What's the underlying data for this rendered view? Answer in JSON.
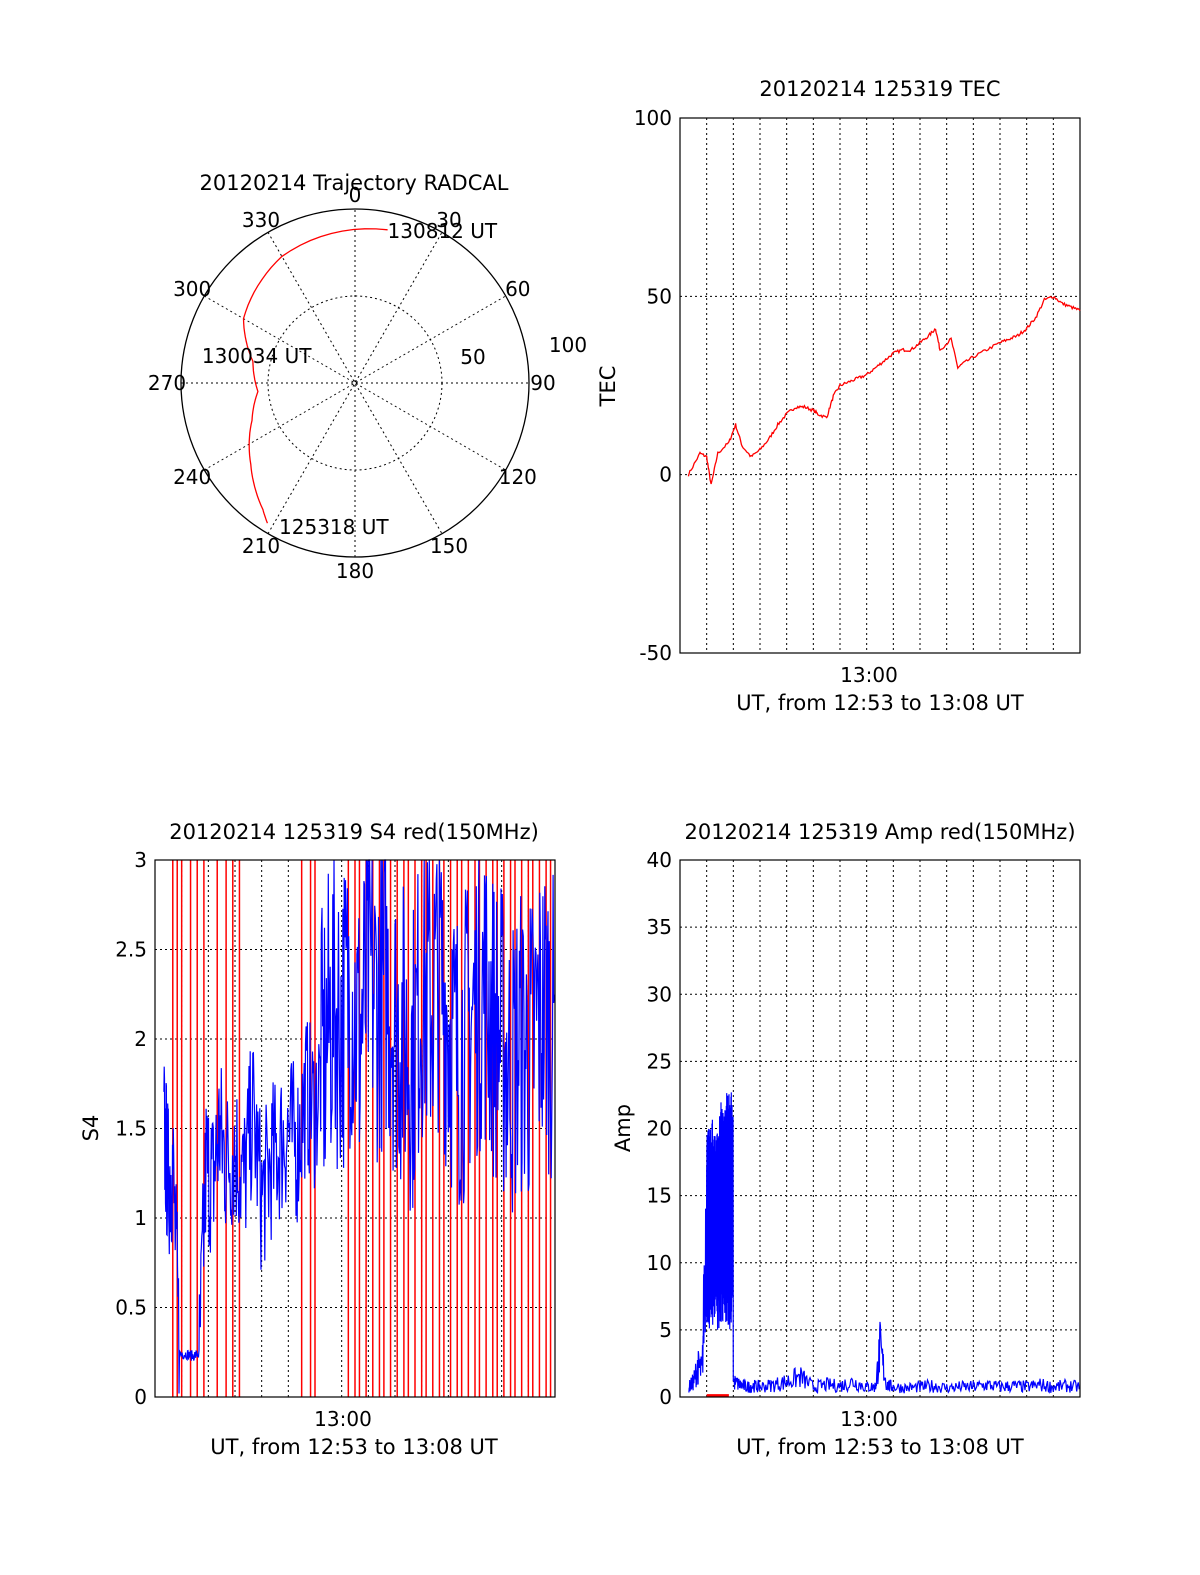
{
  "chart_data": [
    {
      "type": "polar",
      "title": "20120214 Trajectory RADCAL",
      "angle_labels": [
        "0",
        "30",
        "60",
        "90",
        "120",
        "150",
        "180",
        "210",
        "240",
        "270",
        "300",
        "330"
      ],
      "radius_labels": [
        "50",
        "100"
      ],
      "rlim": [
        0,
        100
      ],
      "grid": true,
      "colors": {
        "trajectory": "#ff0000"
      },
      "annotations": [
        {
          "text": "130812 UT",
          "azimuth": 12,
          "r": 90
        },
        {
          "text": "130034 UT",
          "azimuth": 270,
          "r": 42
        },
        {
          "text": "125318 UT",
          "azimuth": 208,
          "r": 93
        }
      ],
      "series": [
        {
          "points": [
            {
              "azimuth": 12,
              "r": 90
            },
            {
              "azimuth": 330,
              "r": 84
            },
            {
              "azimuth": 300,
              "r": 74
            },
            {
              "azimuth": 282,
              "r": 60
            },
            {
              "azimuth": 265,
              "r": 56
            },
            {
              "azimuth": 250,
              "r": 63
            },
            {
              "azimuth": 232,
              "r": 76
            },
            {
              "azimuth": 216,
              "r": 90
            },
            {
              "azimuth": 212,
              "r": 95
            }
          ]
        }
      ]
    },
    {
      "type": "line",
      "title": "20120214 125319 TEC",
      "ylabel": "TEC",
      "xlabel": "UT, from 12:53 to 13:08 UT",
      "x_tick_label": "13:00",
      "xlim": [
        "12:53",
        "13:08"
      ],
      "ylim": [
        -50,
        100
      ],
      "y_ticks": [
        "-50",
        "0",
        "50",
        "100"
      ],
      "grid": true,
      "colors": {
        "line": "#ff0000"
      },
      "series": [
        {
          "x": [
            "12:53:19",
            "12:53:45",
            "12:54:00",
            "12:54:10",
            "12:54:25",
            "12:54:50",
            "12:55:05",
            "12:55:20",
            "12:55:40",
            "12:56:00",
            "12:56:20",
            "12:56:40",
            "12:57:00",
            "12:57:20",
            "12:57:40",
            "12:58:00",
            "12:58:10",
            "12:58:30",
            "12:58:45",
            "12:59:00",
            "12:59:20",
            "12:59:40",
            "13:00:00",
            "13:00:20",
            "13:00:40",
            "13:01:00",
            "13:01:20",
            "13:01:40",
            "13:02:00",
            "13:02:20",
            "13:02:35",
            "13:02:45",
            "13:03:10",
            "13:03:25",
            "13:03:35",
            "13:04:00",
            "13:04:30",
            "13:05:00",
            "13:05:20",
            "13:05:40",
            "13:06:00",
            "13:06:20",
            "13:06:40",
            "13:07:00",
            "13:07:20",
            "13:07:40",
            "13:08:00"
          ],
          "values": [
            0,
            6,
            5,
            -3,
            6,
            9,
            14,
            8,
            5,
            7,
            10,
            14,
            17,
            19,
            19,
            18,
            17,
            16,
            22,
            25,
            26,
            27,
            28,
            30,
            32,
            34,
            35,
            35,
            37,
            39,
            41,
            35,
            38,
            30,
            31,
            33,
            35,
            37,
            38,
            39,
            41,
            44,
            49,
            50,
            48,
            47,
            46
          ]
        }
      ]
    },
    {
      "type": "line",
      "title": "20120214 125319 S4 red(150MHz)",
      "ylabel": "S4",
      "xlabel": "UT, from 12:53 to 13:08 UT",
      "x_tick_label": "13:00",
      "xlim": [
        "12:53",
        "13:08"
      ],
      "ylim": [
        0,
        3
      ],
      "y_ticks": [
        "0",
        "0.5",
        "1",
        "1.5",
        "2",
        "2.5",
        "3"
      ],
      "grid": true,
      "colors": {
        "red_channel": "#ff0000",
        "blue_channel": "#0000ff"
      },
      "red_spikes_x": [
        "12:53:40",
        "12:53:50",
        "12:54:00",
        "12:54:20",
        "12:54:35",
        "12:54:50",
        "12:55:20",
        "12:55:40",
        "12:55:55",
        "12:56:10",
        "12:58:30",
        "12:58:50",
        "12:59:00",
        "13:00:15",
        "13:00:30",
        "13:00:40",
        "13:00:55",
        "13:01:10",
        "13:01:25",
        "13:01:35",
        "13:01:50",
        "13:02:05",
        "13:02:20",
        "13:02:30",
        "13:02:45",
        "13:03:00",
        "13:03:10",
        "13:03:25",
        "13:03:40",
        "13:03:50",
        "13:04:05",
        "13:04:20",
        "13:04:30",
        "13:04:45",
        "13:05:00",
        "13:05:10",
        "13:05:25",
        "13:05:40",
        "13:05:50",
        "13:06:05",
        "13:06:20",
        "13:06:30",
        "13:06:45",
        "13:07:00",
        "13:07:10",
        "13:07:25",
        "13:07:40",
        "13:07:50"
      ],
      "series": [
        {
          "x": [
            "12:53:20",
            "12:53:30",
            "12:53:40",
            "12:53:55",
            "12:54:10",
            "12:54:25",
            "12:54:40",
            "12:54:55",
            "12:55:10",
            "12:55:25",
            "12:55:40",
            "12:56:00",
            "12:56:20",
            "12:56:40",
            "12:57:00",
            "12:57:20",
            "12:57:40",
            "12:58:00",
            "12:58:20",
            "12:58:40",
            "12:59:00",
            "12:59:20",
            "12:59:40",
            "13:00:00",
            "13:00:20",
            "13:00:40",
            "13:01:00",
            "13:01:20",
            "13:01:40",
            "13:02:00",
            "13:02:20",
            "13:02:40",
            "13:03:00",
            "13:03:20",
            "13:03:40",
            "13:04:00",
            "13:04:20",
            "13:04:40",
            "13:05:00",
            "13:05:20",
            "13:05:40",
            "13:06:00",
            "13:06:20",
            "13:06:40",
            "13:07:00",
            "13:07:20",
            "13:07:40",
            "13:08:00"
          ],
          "values": [
            1.5,
            1.2,
            1.3,
            0.24,
            0.24,
            0.23,
            0.24,
            1.3,
            1.2,
            1.5,
            1.3,
            1.4,
            1.2,
            1.6,
            1.1,
            1.3,
            1.4,
            1.5,
            1.4,
            1.7,
            1.6,
            1.9,
            2.2,
            2.1,
            2.3,
            2.0,
            2.4,
            2.2,
            2.3,
            2.1,
            2.0,
            1.9,
            2.3,
            2.2,
            2.4,
            2.1,
            1.9,
            2.0,
            2.2,
            2.3,
            2.1,
            2.0,
            1.8,
            2.0,
            1.9,
            2.1,
            2.2,
            2.0
          ]
        }
      ]
    },
    {
      "type": "line",
      "title": "20120214 125319 Amp red(150MHz)",
      "ylabel": "Amp",
      "xlabel": "UT, from 12:53 to 13:08 UT",
      "x_tick_label": "13:00",
      "xlim": [
        "12:53",
        "13:08"
      ],
      "ylim": [
        0,
        40
      ],
      "y_ticks": [
        "0",
        "5",
        "10",
        "15",
        "20",
        "25",
        "30",
        "35",
        "40"
      ],
      "grid": true,
      "colors": {
        "red_channel": "#ff0000",
        "blue_channel": "#0000ff"
      },
      "series": [
        {
          "x": [
            "12:53:20",
            "12:53:30",
            "12:53:40",
            "12:53:50",
            "12:54:00",
            "12:54:10",
            "12:54:30",
            "12:54:45",
            "12:55:00",
            "12:55:15",
            "12:55:30",
            "12:55:45",
            "12:56:00",
            "12:56:30",
            "12:57:00",
            "12:57:30",
            "12:58:00",
            "12:58:30",
            "12:59:00",
            "12:59:30",
            "13:00:00",
            "13:00:20",
            "13:00:30",
            "13:00:45",
            "13:01:00",
            "13:01:30",
            "13:02:00",
            "13:02:30",
            "13:03:00",
            "13:03:30",
            "13:04:00",
            "13:04:30",
            "13:05:00",
            "13:05:30",
            "13:06:00",
            "13:06:30",
            "13:07:00",
            "13:07:30",
            "13:08:00"
          ],
          "values": [
            1.0,
            1.5,
            3.0,
            2.5,
            20.0,
            21.0,
            22.0,
            23.0,
            1.5,
            1.2,
            1.0,
            1.1,
            1.0,
            1.2,
            1.5,
            2.0,
            1.0,
            1.2,
            1.1,
            1.5,
            1.0,
            1.0,
            4.8,
            1.2,
            1.0,
            0.9,
            1.0,
            1.1,
            0.9,
            1.0,
            1.0,
            1.2,
            1.0,
            1.1,
            1.0,
            1.2,
            1.0,
            1.1,
            1.0
          ]
        }
      ]
    }
  ]
}
